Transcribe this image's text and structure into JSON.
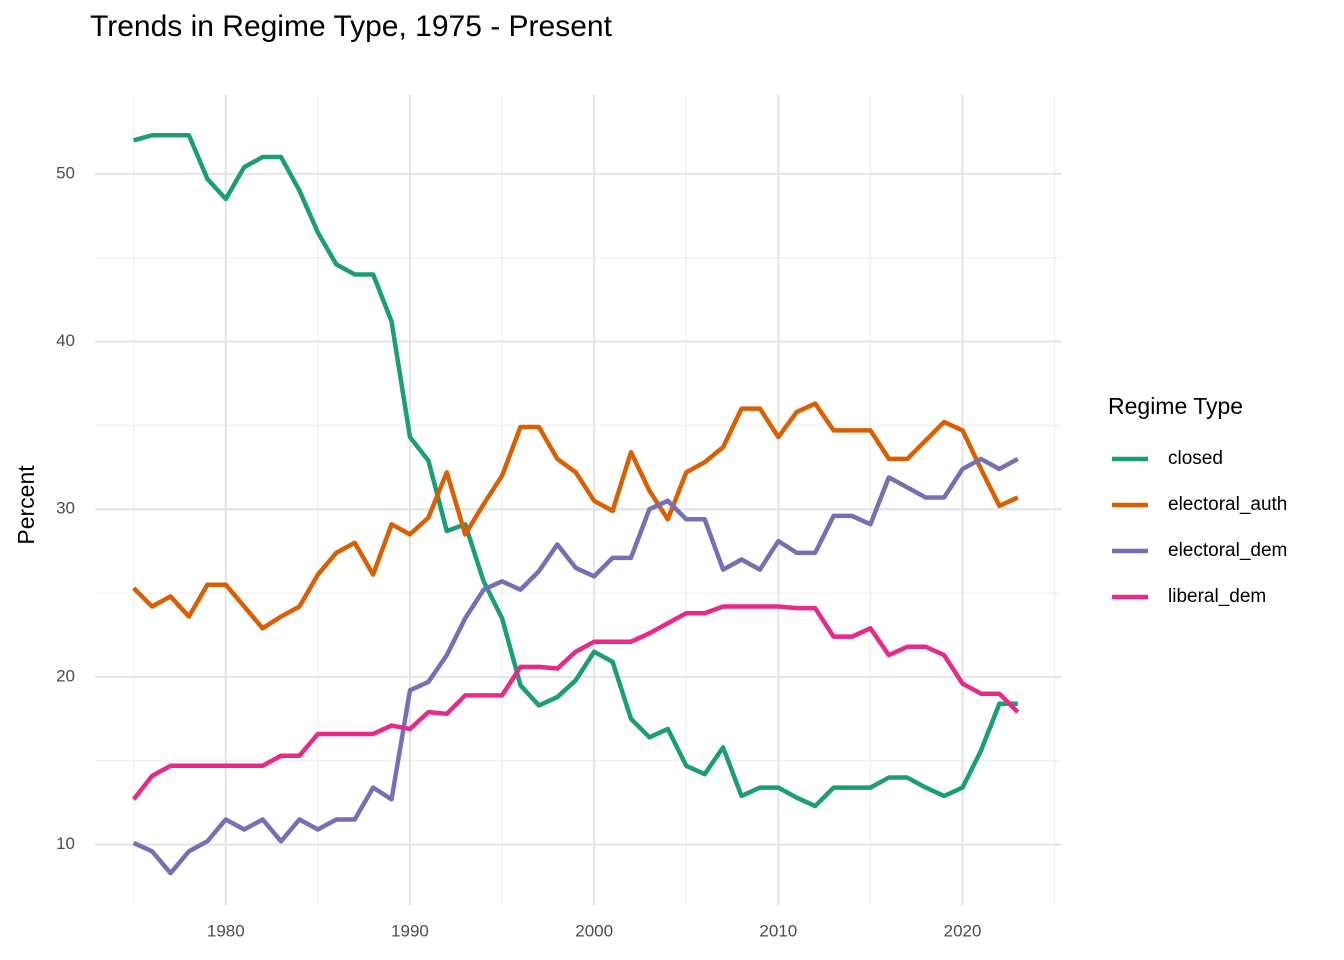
{
  "chart_data": {
    "type": "line",
    "title": "Trends in Regime Type, 1975 - Present",
    "y_label": "Percent",
    "legend_title": "Regime Type",
    "legend": "right",
    "grid": true,
    "x": [
      1975,
      1976,
      1977,
      1978,
      1979,
      1980,
      1981,
      1982,
      1983,
      1984,
      1985,
      1986,
      1987,
      1988,
      1989,
      1990,
      1991,
      1992,
      1993,
      1994,
      1995,
      1996,
      1997,
      1998,
      1999,
      2000,
      2001,
      2002,
      2003,
      2004,
      2005,
      2006,
      2007,
      2008,
      2009,
      2010,
      2011,
      2012,
      2013,
      2014,
      2015,
      2016,
      2017,
      2018,
      2019,
      2020,
      2021,
      2022,
      2023
    ],
    "series": [
      {
        "name": "closed",
        "color": "#1b9e77",
        "values": [
          52,
          52.3,
          52.3,
          52.3,
          49.7,
          48.5,
          50.4,
          51,
          51,
          49,
          46.5,
          44.6,
          44,
          44,
          41.2,
          34.3,
          32.9,
          28.7,
          29.1,
          25.7,
          23.5,
          19.5,
          18.3,
          18.8,
          19.8,
          21.5,
          20.9,
          17.5,
          16.4,
          16.9,
          14.7,
          14.2,
          15.8,
          12.9,
          13.4,
          13.4,
          12.8,
          12.3,
          13.4,
          13.4,
          13.4,
          14,
          14,
          13.4,
          12.9,
          13.4,
          15.6,
          18.4,
          18.4
        ]
      },
      {
        "name": "electoral_auth",
        "color": "#d95f02",
        "values": [
          25.3,
          24.2,
          24.8,
          23.6,
          25.5,
          25.5,
          24.2,
          22.9,
          23.6,
          24.2,
          26.1,
          27.4,
          28,
          26.1,
          29.1,
          28.5,
          29.5,
          32.2,
          28.5,
          30.3,
          32,
          34.9,
          34.9,
          33,
          32.2,
          30.5,
          29.9,
          33.4,
          31.1,
          29.4,
          32.2,
          32.8,
          33.7,
          36,
          36,
          34.3,
          35.8,
          36.3,
          34.7,
          34.7,
          34.7,
          33,
          33,
          34.1,
          35.2,
          34.7,
          32.4,
          30.2,
          30.7
        ]
      },
      {
        "name": "electoral_dem",
        "color": "#7570b3",
        "values": [
          10.1,
          9.6,
          8.3,
          9.6,
          10.2,
          11.5,
          10.9,
          11.5,
          10.2,
          11.5,
          10.9,
          11.5,
          11.5,
          13.4,
          12.7,
          19.2,
          19.7,
          21.3,
          23.5,
          25.2,
          25.7,
          25.2,
          26.3,
          27.9,
          26.5,
          26,
          27.1,
          27.1,
          30,
          30.5,
          29.4,
          29.4,
          26.4,
          27,
          26.4,
          28.1,
          27.4,
          27.4,
          29.6,
          29.6,
          29.1,
          31.9,
          31.3,
          30.7,
          30.7,
          32.4,
          33,
          32.4,
          33
        ]
      },
      {
        "name": "liberal_dem",
        "color": "#e7298a",
        "values": [
          12.7,
          14.1,
          14.7,
          14.7,
          14.7,
          14.7,
          14.7,
          14.7,
          15.3,
          15.3,
          16.6,
          16.6,
          16.6,
          16.6,
          17.1,
          16.9,
          17.9,
          17.8,
          18.9,
          18.9,
          18.9,
          20.6,
          20.6,
          20.5,
          21.5,
          22.1,
          22.1,
          22.1,
          22.6,
          23.2,
          23.8,
          23.8,
          24.2,
          24.2,
          24.2,
          24.2,
          24.1,
          24.1,
          22.4,
          22.4,
          22.9,
          21.3,
          21.8,
          21.8,
          21.3,
          19.6,
          19,
          19,
          17.9
        ]
      }
    ],
    "xlim": [
      1972.9,
      2025.4
    ],
    "xticks": [
      1980,
      1990,
      2000,
      2010,
      2020
    ],
    "xminor": [
      1975,
      1985,
      1995,
      2005,
      2015,
      2025
    ],
    "ylim": [
      6.4,
      54.7
    ],
    "yticks": [
      10,
      20,
      30,
      40,
      50
    ],
    "yminor": [
      15,
      25,
      35,
      45
    ]
  }
}
